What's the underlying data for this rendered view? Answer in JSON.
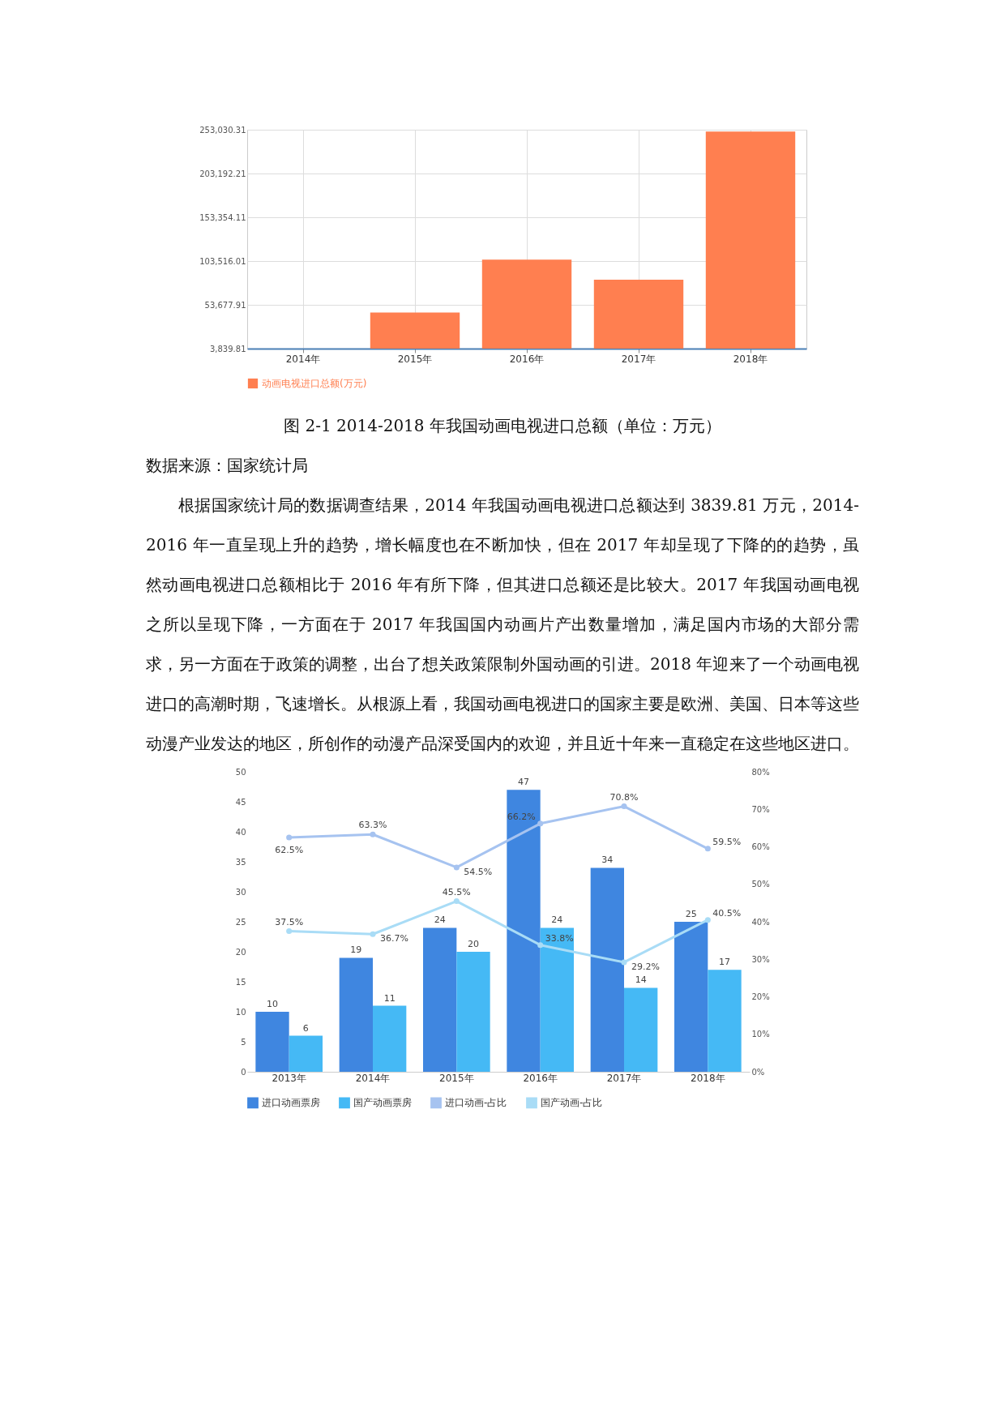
{
  "chart_data": [
    {
      "type": "bar",
      "categories": [
        "2014年",
        "2015年",
        "2016年",
        "2017年",
        "2018年"
      ],
      "series": [
        {
          "name": "动画电视进口总额(万元)",
          "color": "#ff7f50",
          "values": [
            3839.81,
            45000,
            105100,
            82400,
            250900
          ]
        }
      ],
      "ylim": [
        3839.81,
        253030.31
      ],
      "yticks": [
        {
          "value": 3839.81,
          "label": "3,839.81"
        },
        {
          "value": 53677.91,
          "label": "53,677.91"
        },
        {
          "value": 103516.01,
          "label": "103,516.01"
        },
        {
          "value": 153354.11,
          "label": "153,354.11"
        },
        {
          "value": 203192.21,
          "label": "203,192.21"
        },
        {
          "value": 253030.31,
          "label": "253,030.31"
        }
      ],
      "grid": true,
      "legend": "bottom",
      "annotations": [
        "图 2-1 2014-2018 年我国动画电视进口总额（单位：万元）",
        "数据来源：国家统计局",
        "根据国家统计局的数据调查结果，2014 年我国动画电视进口总额达到 3839.81 万元，2014-2016 年一直呈现上升的趋势，增长幅度也在不断加快，但在 2017 年却呈现了下降的的趋势，虽然动画电视进口总额相比于 2016 年有所下降，但其进口总额还是比较大。2017 年我国动画电视之所以呈现下降，一方面在于 2017 年我国国内动画片产出数量增加，满足国内市场的大部分需求，另一方面在于政策的调整，出台了想关政策限制外国动画的引进。2018 年迎来了一个动画电视进口的高潮时期，飞速增长。从根源上看，我国动画电视进口的国家主要是欧洲、美国、日本等这些动漫产业发达的地区，所创作的动漫产品深受国内的欢迎，并且近十年来一直稳定在这些地区进口。"
      ]
    },
    {
      "type": "bar",
      "categories": [
        "2013年",
        "2014年",
        "2015年",
        "2016年",
        "2017年",
        "2018年"
      ],
      "series": [
        {
          "name": "进口动画票房",
          "color": "#3f86e0",
          "values": [
            10,
            19,
            24,
            47,
            34,
            25
          ],
          "value_labels": [
            "10",
            "19",
            "24",
            "47",
            "34",
            "25"
          ]
        },
        {
          "name": "国产动画票房",
          "color": "#45b9f5",
          "values": [
            6,
            11,
            20,
            24,
            14,
            17
          ],
          "value_labels": [
            "6",
            "11",
            "20",
            "24",
            "14",
            "17"
          ]
        },
        {
          "name": "进口动画-占比",
          "type": "line",
          "axis": "y2",
          "color": "#a6c3f0",
          "values": [
            62.5,
            63.3,
            54.5,
            66.2,
            70.8,
            59.5
          ],
          "value_labels": [
            "62.5%",
            "63.3%",
            "54.5%",
            "66.2%",
            "70.8%",
            "59.5%"
          ]
        },
        {
          "name": "国产动画-占比",
          "type": "line",
          "axis": "y2",
          "color": "#a9dcf6",
          "values": [
            37.5,
            36.7,
            45.5,
            33.8,
            29.2,
            40.5
          ],
          "value_labels": [
            "37.5%",
            "36.7%",
            "45.5%",
            "33.8%",
            "29.2%",
            "40.5%"
          ]
        }
      ],
      "ylim": [
        0,
        50
      ],
      "yticks": [
        0,
        5,
        10,
        15,
        20,
        25,
        30,
        35,
        40,
        45,
        50
      ],
      "y2lim": [
        0,
        80
      ],
      "y2ticks": [
        {
          "value": 0,
          "label": "0%"
        },
        {
          "value": 10,
          "label": "10%"
        },
        {
          "value": 20,
          "label": "20%"
        },
        {
          "value": 30,
          "label": "30%"
        },
        {
          "value": 40,
          "label": "40%"
        },
        {
          "value": 50,
          "label": "50%"
        },
        {
          "value": 60,
          "label": "60%"
        },
        {
          "value": 70,
          "label": "70%"
        },
        {
          "value": 80,
          "label": "80%"
        }
      ],
      "marker": "circle",
      "legend": "bottom"
    }
  ]
}
